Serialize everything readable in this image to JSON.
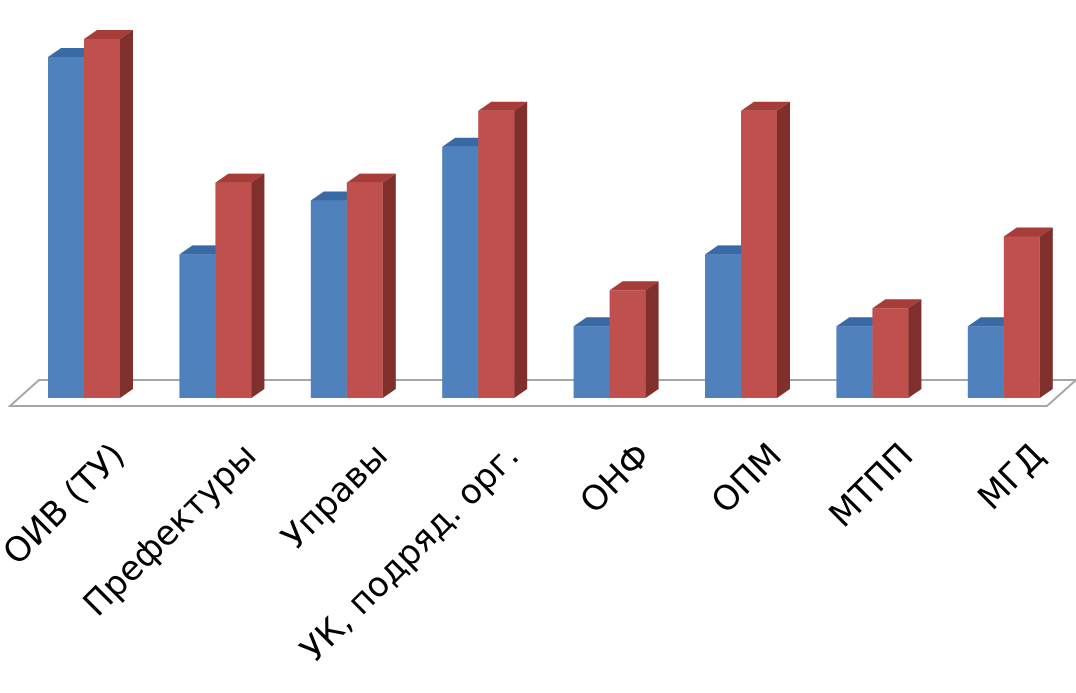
{
  "chart_data": {
    "type": "bar",
    "categories": [
      "ОИВ (ТУ)",
      "Префектуры",
      "Управы",
      "УК, подряд. орг.",
      "ОНФ",
      "ОПМ",
      "МТПП",
      "МГД"
    ],
    "series": [
      {
        "values": [
          9.5,
          4.0,
          5.5,
          7.0,
          2.0,
          4.0,
          2.0,
          2.0
        ]
      },
      {
        "values": [
          10.0,
          6.0,
          6.0,
          8.0,
          3.0,
          8.0,
          2.5,
          4.5
        ]
      }
    ],
    "ylim": [
      0,
      10
    ],
    "grid": false,
    "legend": false,
    "colors": {
      "series_front": [
        "#4f81bd",
        "#c0504d"
      ],
      "series_top": [
        "#3a6aa6",
        "#a83c39"
      ],
      "series_side": [
        "#3c6593",
        "#7f2f2c"
      ],
      "floor_line": "#a6a6a6"
    }
  }
}
